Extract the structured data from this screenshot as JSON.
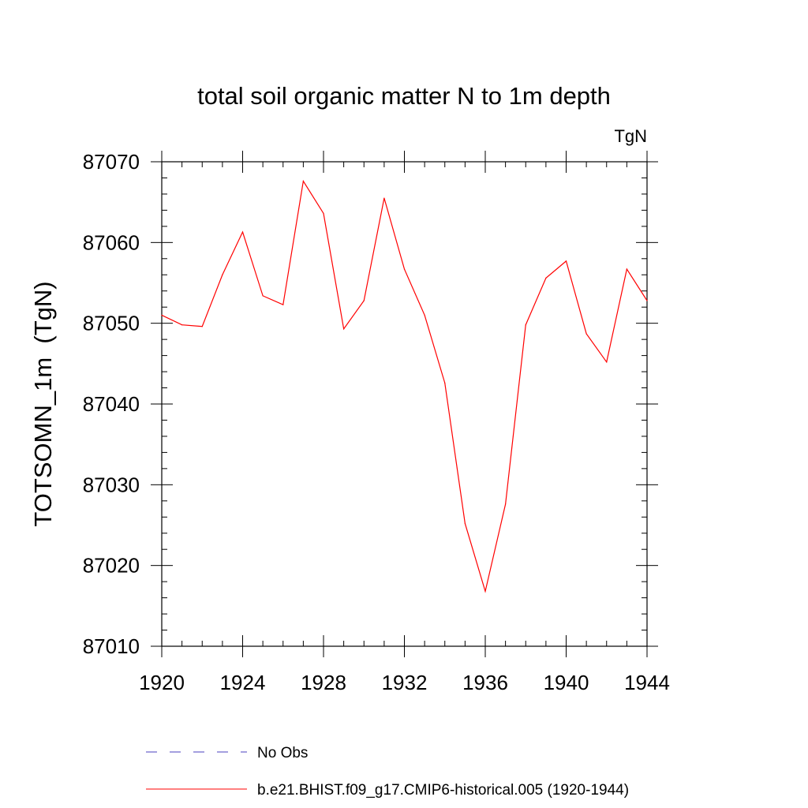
{
  "chart_data": {
    "type": "line",
    "title": "total soil organic matter N to 1m depth",
    "units_label": "TgN",
    "ylabel": "TOTSOMN_1m  (TgN)",
    "xlabel": "",
    "xlim": [
      1920,
      1944
    ],
    "ylim": [
      87010,
      87070
    ],
    "x_ticks": [
      1920,
      1924,
      1928,
      1932,
      1936,
      1940,
      1944
    ],
    "x_tick_labels": [
      "1920",
      "1924",
      "1928",
      "1932",
      "1936",
      "1940",
      "1944"
    ],
    "y_ticks": [
      87010,
      87020,
      87030,
      87040,
      87050,
      87060,
      87070
    ],
    "y_tick_labels": [
      "87010",
      "87020",
      "87030",
      "87040",
      "87050",
      "87060",
      "87070"
    ],
    "grid": false,
    "legend_position": "bottom",
    "series": [
      {
        "name": "b.e21.BHIST.f09_g17.CMIP6-historical.005 (1920-1944)",
        "color": "#ff0000",
        "style": "solid",
        "x": [
          1920,
          1921,
          1922,
          1923,
          1924,
          1925,
          1926,
          1927,
          1928,
          1929,
          1930,
          1931,
          1932,
          1933,
          1934,
          1935,
          1936,
          1937,
          1938,
          1939,
          1940,
          1941,
          1942,
          1943,
          1944
        ],
        "values": [
          87051.0,
          87049.8,
          87049.6,
          87056.0,
          87061.3,
          87053.4,
          87052.3,
          87067.6,
          87063.6,
          87049.3,
          87052.8,
          87065.5,
          87056.7,
          87051.0,
          87042.6,
          87025.2,
          87016.8,
          87027.6,
          87049.8,
          87055.6,
          87057.7,
          87048.7,
          87045.2,
          87056.7,
          87052.8
        ]
      },
      {
        "name": "No Obs",
        "color": "#4a3fbf",
        "style": "dashed",
        "x": [],
        "values": []
      }
    ]
  }
}
